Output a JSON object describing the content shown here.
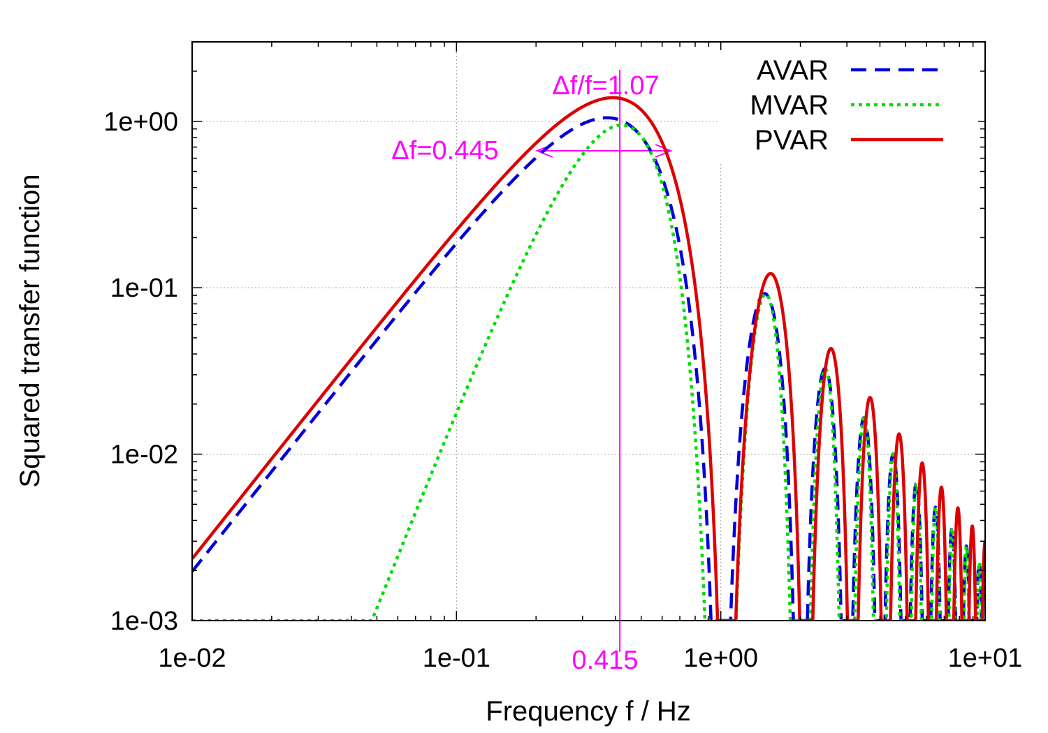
{
  "chart_data": {
    "type": "line",
    "xscale": "log",
    "yscale": "log",
    "xlim": [
      0.01,
      10
    ],
    "ylim": [
      0.001,
      3
    ],
    "xlabel": "Frequency f / Hz",
    "ylabel": "Squared transfer function",
    "x_ticks": [
      {
        "value": 0.01,
        "label": "1e-02"
      },
      {
        "value": 0.1,
        "label": "1e-01"
      },
      {
        "value": 1,
        "label": "1e+00"
      },
      {
        "value": 10,
        "label": "1e+01"
      }
    ],
    "y_ticks": [
      {
        "value": 0.001,
        "label": "1e-03"
      },
      {
        "value": 0.01,
        "label": "1e-02"
      },
      {
        "value": 0.1,
        "label": "1e-01"
      },
      {
        "value": 1,
        "label": "1e+00"
      }
    ],
    "grid": true,
    "legend_position": "top-right",
    "series": [
      {
        "name": "AVAR",
        "color": "#0000dd",
        "style": "dashed",
        "tau": 1,
        "filter": "avar"
      },
      {
        "name": "MVAR",
        "color": "#00dd00",
        "style": "dotted",
        "tau": 1,
        "filter": "mvar"
      },
      {
        "name": "PVAR",
        "color": "#dd0000",
        "style": "solid",
        "tau": 1,
        "filter": "pvar"
      }
    ],
    "annotations": {
      "color": "#ff00ff",
      "center_frequency": 0.415,
      "center_label": "0.415",
      "bandwidth_label": "Δf=0.445",
      "relative_bandwidth_label": "Δf/f=1.07",
      "arrow_from": 0.202,
      "arrow_to": 0.647,
      "arrow_level": 0.665
    }
  }
}
